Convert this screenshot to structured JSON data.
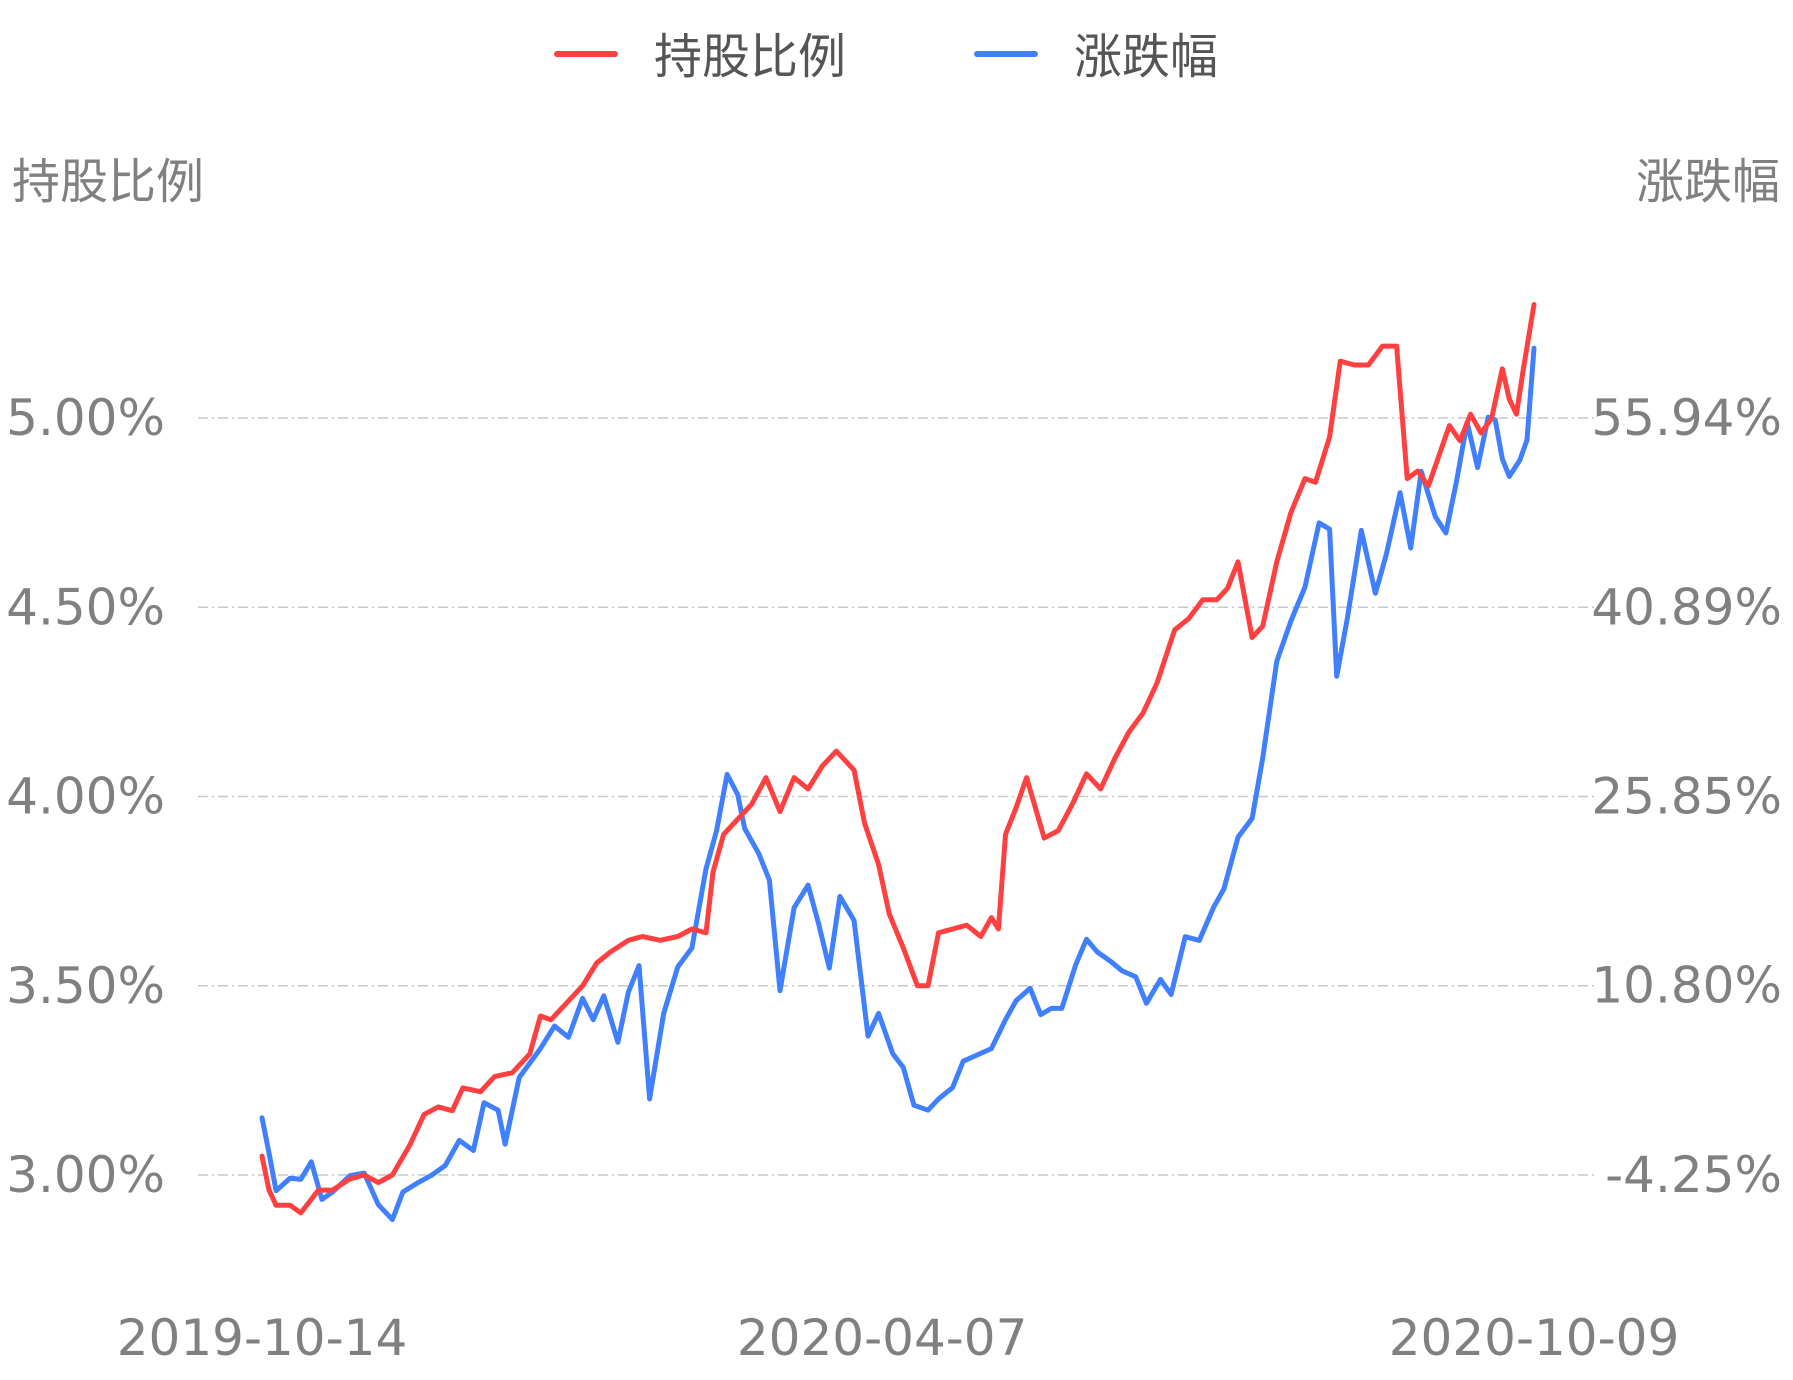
{
  "chart_data": {
    "type": "line",
    "legend_position": "top-center",
    "y_left": {
      "title": "持股比例",
      "ticks": [
        "3.00%",
        "3.50%",
        "4.00%",
        "4.50%",
        "5.00%"
      ],
      "tick_values": [
        3.0,
        3.5,
        4.0,
        4.5,
        5.0
      ],
      "range": [
        3.0,
        5.0
      ]
    },
    "y_right": {
      "title": "涨跌幅",
      "ticks": [
        "-4.25%",
        "10.80%",
        "25.85%",
        "40.89%",
        "55.94%"
      ],
      "tick_values": [
        -4.25,
        10.8,
        25.85,
        40.89,
        55.94
      ],
      "range": [
        -4.25,
        55.94
      ]
    },
    "x": {
      "ticks": [
        "2019-10-14",
        "2020-04-07",
        "2020-10-09"
      ],
      "range": [
        "2019-10-14",
        "2020-10-09"
      ]
    },
    "grid": true,
    "series": [
      {
        "name": "持股比例",
        "axis": "left",
        "color": "#ff4040",
        "points": [
          [
            "2019-10-14",
            3.05
          ],
          [
            "2019-10-16",
            2.96
          ],
          [
            "2019-10-18",
            2.92
          ],
          [
            "2019-10-22",
            2.92
          ],
          [
            "2019-10-25",
            2.9
          ],
          [
            "2019-10-30",
            2.96
          ],
          [
            "2019-11-03",
            2.96
          ],
          [
            "2019-11-08",
            2.99
          ],
          [
            "2019-11-12",
            3.0
          ],
          [
            "2019-11-16",
            2.98
          ],
          [
            "2019-11-20",
            3.0
          ],
          [
            "2019-11-25",
            3.08
          ],
          [
            "2019-11-29",
            3.16
          ],
          [
            "2019-12-03",
            3.18
          ],
          [
            "2019-12-07",
            3.17
          ],
          [
            "2019-12-10",
            3.23
          ],
          [
            "2019-12-15",
            3.22
          ],
          [
            "2019-12-19",
            3.26
          ],
          [
            "2019-12-24",
            3.27
          ],
          [
            "2019-12-29",
            3.32
          ],
          [
            "2020-01-01",
            3.42
          ],
          [
            "2020-01-04",
            3.41
          ],
          [
            "2020-01-08",
            3.45
          ],
          [
            "2020-01-13",
            3.5
          ],
          [
            "2020-01-17",
            3.56
          ],
          [
            "2020-01-21",
            3.59
          ],
          [
            "2020-01-26",
            3.62
          ],
          [
            "2020-01-30",
            3.63
          ],
          [
            "2020-02-04",
            3.62
          ],
          [
            "2020-02-09",
            3.63
          ],
          [
            "2020-02-13",
            3.65
          ],
          [
            "2020-02-17",
            3.64
          ],
          [
            "2020-02-19",
            3.8
          ],
          [
            "2020-02-22",
            3.9
          ],
          [
            "2020-02-26",
            3.94
          ],
          [
            "2020-03-01",
            3.98
          ],
          [
            "2020-03-05",
            4.05
          ],
          [
            "2020-03-09",
            3.96
          ],
          [
            "2020-03-13",
            4.05
          ],
          [
            "2020-03-17",
            4.02
          ],
          [
            "2020-03-21",
            4.08
          ],
          [
            "2020-03-25",
            4.12
          ],
          [
            "2020-03-30",
            4.07
          ],
          [
            "2020-04-02",
            3.93
          ],
          [
            "2020-04-06",
            3.82
          ],
          [
            "2020-04-09",
            3.69
          ],
          [
            "2020-04-13",
            3.6
          ],
          [
            "2020-04-17",
            3.5
          ],
          [
            "2020-04-20",
            3.5
          ],
          [
            "2020-04-23",
            3.64
          ],
          [
            "2020-04-27",
            3.65
          ],
          [
            "2020-05-01",
            3.66
          ],
          [
            "2020-05-05",
            3.63
          ],
          [
            "2020-05-08",
            3.68
          ],
          [
            "2020-05-10",
            3.65
          ],
          [
            "2020-05-12",
            3.9
          ],
          [
            "2020-05-15",
            3.97
          ],
          [
            "2020-05-18",
            4.05
          ],
          [
            "2020-05-23",
            3.89
          ],
          [
            "2020-05-27",
            3.91
          ],
          [
            "2020-05-31",
            3.98
          ],
          [
            "2020-06-04",
            4.06
          ],
          [
            "2020-06-08",
            4.02
          ],
          [
            "2020-06-12",
            4.1
          ],
          [
            "2020-06-16",
            4.17
          ],
          [
            "2020-06-20",
            4.22
          ],
          [
            "2020-06-24",
            4.3
          ],
          [
            "2020-06-29",
            4.44
          ],
          [
            "2020-07-03",
            4.47
          ],
          [
            "2020-07-07",
            4.52
          ],
          [
            "2020-07-11",
            4.52
          ],
          [
            "2020-07-14",
            4.55
          ],
          [
            "2020-07-17",
            4.62
          ],
          [
            "2020-07-21",
            4.42
          ],
          [
            "2020-07-24",
            4.45
          ],
          [
            "2020-07-28",
            4.62
          ],
          [
            "2020-08-01",
            4.75
          ],
          [
            "2020-08-05",
            4.84
          ],
          [
            "2020-08-08",
            4.83
          ],
          [
            "2020-08-12",
            4.95
          ],
          [
            "2020-08-15",
            5.15
          ],
          [
            "2020-08-19",
            5.14
          ],
          [
            "2020-08-23",
            5.14
          ],
          [
            "2020-08-27",
            5.19
          ],
          [
            "2020-08-31",
            5.19
          ],
          [
            "2020-09-03",
            4.84
          ],
          [
            "2020-09-06",
            4.86
          ],
          [
            "2020-09-09",
            4.82
          ],
          [
            "2020-09-12",
            4.9
          ],
          [
            "2020-09-15",
            4.98
          ],
          [
            "2020-09-18",
            4.94
          ],
          [
            "2020-09-21",
            5.01
          ],
          [
            "2020-09-24",
            4.96
          ],
          [
            "2020-09-27",
            5.0
          ],
          [
            "2020-09-30",
            5.13
          ],
          [
            "2020-10-02",
            5.05
          ],
          [
            "2020-10-04",
            5.01
          ],
          [
            "2020-10-06",
            5.13
          ],
          [
            "2020-10-09",
            5.3
          ]
        ]
      },
      {
        "name": "涨跌幅",
        "axis": "right",
        "color": "#4080ff",
        "points": [
          [
            "2019-10-14",
            0.3
          ],
          [
            "2019-10-16",
            -2.5
          ],
          [
            "2019-10-18",
            -5.5
          ],
          [
            "2019-10-22",
            -4.5
          ],
          [
            "2019-10-25",
            -4.6
          ],
          [
            "2019-10-28",
            -3.2
          ],
          [
            "2019-10-31",
            -6.2
          ],
          [
            "2019-11-03",
            -5.6
          ],
          [
            "2019-11-08",
            -4.3
          ],
          [
            "2019-11-12",
            -4.1
          ],
          [
            "2019-11-16",
            -6.6
          ],
          [
            "2019-11-20",
            -7.8
          ],
          [
            "2019-11-23",
            -5.6
          ],
          [
            "2019-11-27",
            -4.9
          ],
          [
            "2019-12-01",
            -4.3
          ],
          [
            "2019-12-05",
            -3.5
          ],
          [
            "2019-12-09",
            -1.5
          ],
          [
            "2019-12-13",
            -2.3
          ],
          [
            "2019-12-16",
            1.5
          ],
          [
            "2019-12-20",
            0.9
          ],
          [
            "2019-12-22",
            -1.8
          ],
          [
            "2019-12-26",
            3.5
          ],
          [
            "2020-01-01",
            5.8
          ],
          [
            "2020-01-05",
            7.6
          ],
          [
            "2020-01-09",
            6.7
          ],
          [
            "2020-01-13",
            9.8
          ],
          [
            "2020-01-16",
            8.1
          ],
          [
            "2020-01-19",
            10.0
          ],
          [
            "2020-01-23",
            6.3
          ],
          [
            "2020-01-26",
            10.3
          ],
          [
            "2020-01-29",
            12.4
          ],
          [
            "2020-02-01",
            1.8
          ],
          [
            "2020-02-05",
            8.6
          ],
          [
            "2020-02-09",
            12.3
          ],
          [
            "2020-02-13",
            13.8
          ],
          [
            "2020-02-17",
            20.1
          ],
          [
            "2020-02-20",
            23.1
          ],
          [
            "2020-02-23",
            27.6
          ],
          [
            "2020-02-26",
            26.0
          ],
          [
            "2020-02-28",
            23.3
          ],
          [
            "2020-03-03",
            21.3
          ],
          [
            "2020-03-06",
            19.2
          ],
          [
            "2020-03-09",
            10.4
          ],
          [
            "2020-03-13",
            17.0
          ],
          [
            "2020-03-17",
            18.8
          ],
          [
            "2020-03-20",
            15.7
          ],
          [
            "2020-03-23",
            12.2
          ],
          [
            "2020-03-26",
            17.9
          ],
          [
            "2020-03-30",
            16.0
          ],
          [
            "2020-04-03",
            6.8
          ],
          [
            "2020-04-06",
            8.6
          ],
          [
            "2020-04-10",
            5.4
          ],
          [
            "2020-04-13",
            4.3
          ],
          [
            "2020-04-16",
            1.3
          ],
          [
            "2020-04-20",
            0.9
          ],
          [
            "2020-04-23",
            1.8
          ],
          [
            "2020-04-27",
            2.7
          ],
          [
            "2020-04-30",
            4.8
          ],
          [
            "2020-05-04",
            5.3
          ],
          [
            "2020-05-08",
            5.8
          ],
          [
            "2020-05-12",
            8.1
          ],
          [
            "2020-05-15",
            9.6
          ],
          [
            "2020-05-19",
            10.6
          ],
          [
            "2020-05-22",
            8.5
          ],
          [
            "2020-05-25",
            9.0
          ],
          [
            "2020-05-28",
            9.0
          ],
          [
            "2020-06-01",
            12.5
          ],
          [
            "2020-06-04",
            14.5
          ],
          [
            "2020-06-07",
            13.5
          ],
          [
            "2020-06-11",
            12.7
          ],
          [
            "2020-06-14",
            12.0
          ],
          [
            "2020-06-18",
            11.5
          ],
          [
            "2020-06-21",
            9.4
          ],
          [
            "2020-06-25",
            11.3
          ],
          [
            "2020-06-28",
            10.1
          ],
          [
            "2020-07-02",
            14.7
          ],
          [
            "2020-07-06",
            14.4
          ],
          [
            "2020-07-10",
            17.0
          ],
          [
            "2020-07-13",
            18.5
          ],
          [
            "2020-07-17",
            22.6
          ],
          [
            "2020-07-21",
            24.1
          ],
          [
            "2020-07-24",
            28.9
          ],
          [
            "2020-07-28",
            36.6
          ],
          [
            "2020-08-01",
            39.8
          ],
          [
            "2020-08-05",
            42.5
          ],
          [
            "2020-08-09",
            47.6
          ],
          [
            "2020-08-12",
            47.1
          ],
          [
            "2020-08-14",
            35.4
          ],
          [
            "2020-08-17",
            40.0
          ],
          [
            "2020-08-21",
            47.0
          ],
          [
            "2020-08-25",
            42.0
          ],
          [
            "2020-08-28",
            45.0
          ],
          [
            "2020-09-01",
            50.0
          ],
          [
            "2020-09-04",
            45.6
          ],
          [
            "2020-09-07",
            51.7
          ],
          [
            "2020-09-11",
            48.1
          ],
          [
            "2020-09-14",
            46.8
          ],
          [
            "2020-09-17",
            50.9
          ],
          [
            "2020-09-20",
            55.6
          ],
          [
            "2020-09-23",
            52.0
          ],
          [
            "2020-09-26",
            56.0
          ],
          [
            "2020-09-28",
            55.8
          ],
          [
            "2020-09-30",
            52.7
          ],
          [
            "2020-10-02",
            51.3
          ],
          [
            "2020-10-05",
            52.6
          ],
          [
            "2020-10-07",
            54.2
          ],
          [
            "2020-10-09",
            61.5
          ]
        ]
      }
    ]
  }
}
